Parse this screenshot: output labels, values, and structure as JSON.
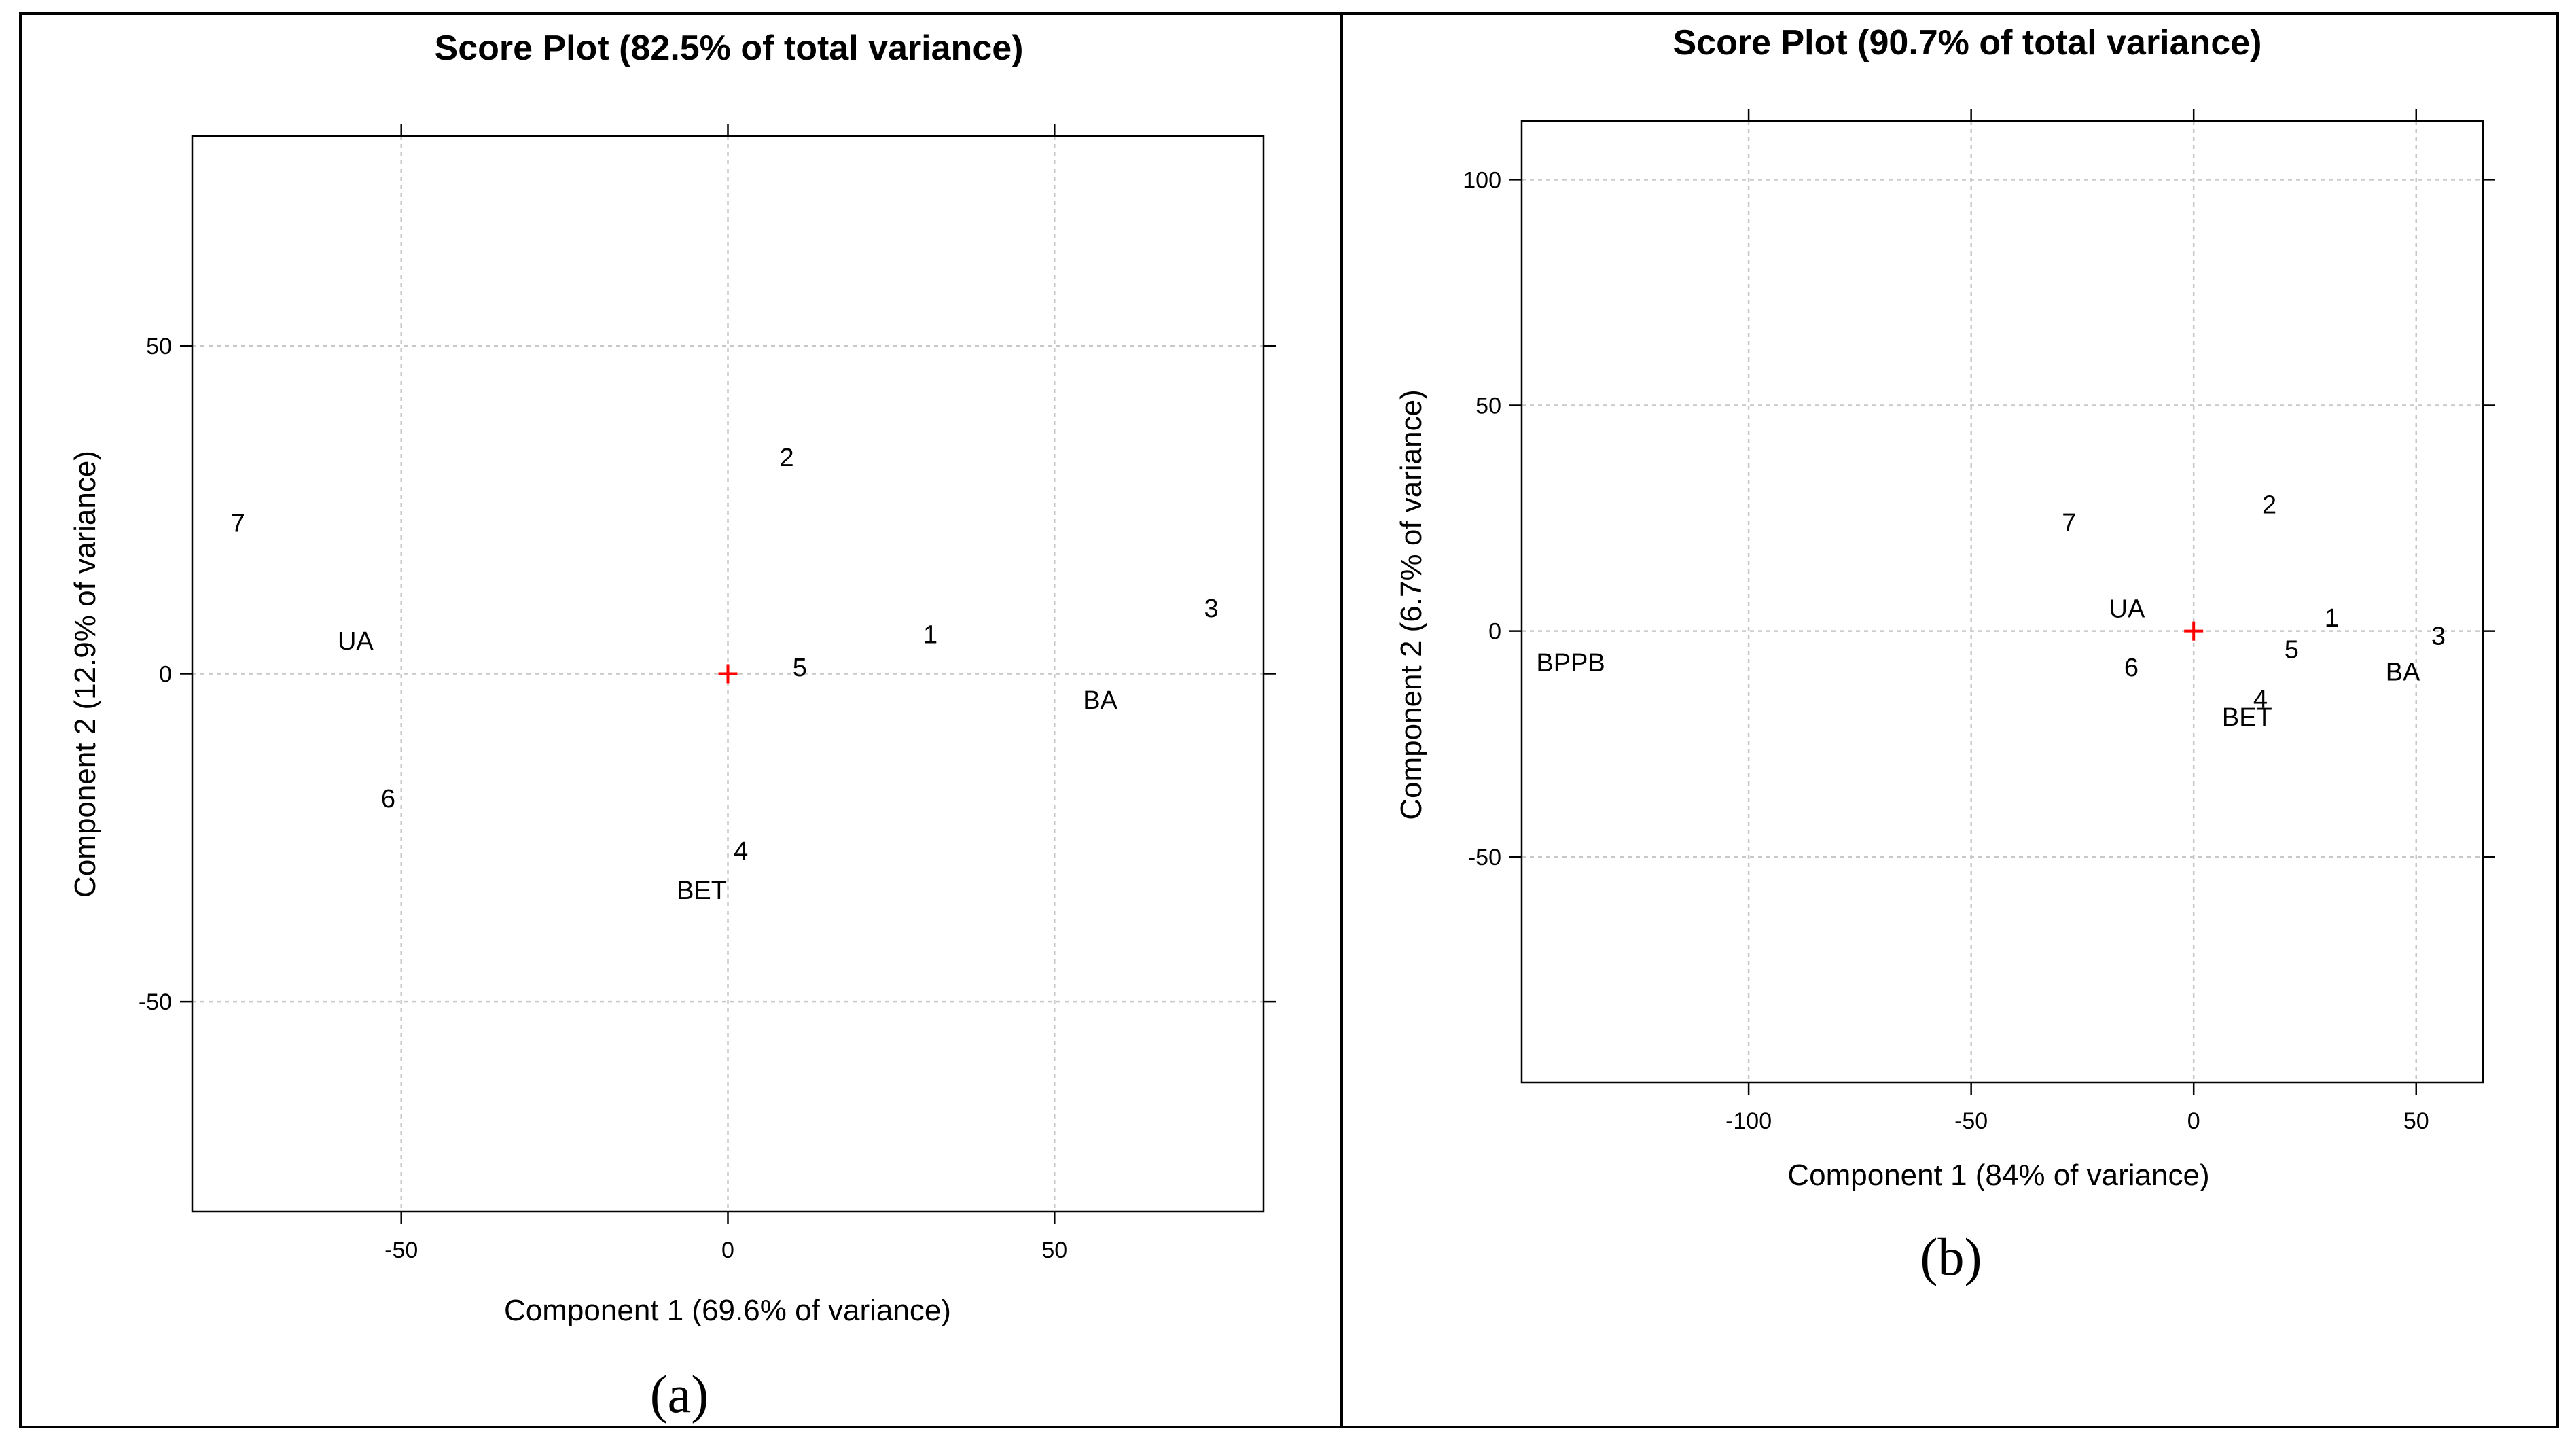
{
  "chart_data": [
    {
      "type": "scatter",
      "panel_tag": "(a)",
      "title": "Score Plot (82.5% of total variance)",
      "xlabel": "Component 1 (69.6% of variance)",
      "ylabel": "Component 2 (12.9% of variance)",
      "xlim": [
        -82,
        82
      ],
      "ylim": [
        -82,
        82
      ],
      "xticks": [
        -50,
        0,
        50
      ],
      "yticks": [
        -50,
        0,
        50
      ],
      "grid": true,
      "origin_marker_color": "#ff0000",
      "points": [
        {
          "label": "7",
          "x": -75,
          "y": 23
        },
        {
          "label": "UA",
          "x": -57,
          "y": 5
        },
        {
          "label": "6",
          "x": -52,
          "y": -19
        },
        {
          "label": "2",
          "x": 9,
          "y": 33
        },
        {
          "label": "1",
          "x": 31,
          "y": 6
        },
        {
          "label": "5",
          "x": 11,
          "y": 1
        },
        {
          "label": "4",
          "x": 2,
          "y": -27
        },
        {
          "label": "BET",
          "x": -4,
          "y": -33
        },
        {
          "label": "BA",
          "x": 57,
          "y": -4
        },
        {
          "label": "3",
          "x": 74,
          "y": 10
        }
      ]
    },
    {
      "type": "scatter",
      "panel_tag": "(b)",
      "title": "Score Plot (90.7% of total variance)",
      "xlabel": "Component 1 (84% of variance)",
      "ylabel": "Component 2 (6.7% of variance)",
      "xlim": [
        -151,
        65
      ],
      "ylim": [
        -100,
        113
      ],
      "xticks": [
        -100,
        -50,
        0,
        50
      ],
      "yticks": [
        -50,
        0,
        50,
        100
      ],
      "grid": true,
      "origin_marker_color": "#ff0000",
      "points": [
        {
          "label": "BPPB",
          "x": -140,
          "y": -7
        },
        {
          "label": "7",
          "x": -28,
          "y": 24
        },
        {
          "label": "2",
          "x": 17,
          "y": 28
        },
        {
          "label": "UA",
          "x": -15,
          "y": 5
        },
        {
          "label": "1",
          "x": 31,
          "y": 3
        },
        {
          "label": "3",
          "x": 55,
          "y": -1
        },
        {
          "label": "6",
          "x": -14,
          "y": -8
        },
        {
          "label": "5",
          "x": 22,
          "y": -4
        },
        {
          "label": "4",
          "x": 15,
          "y": -15
        },
        {
          "label": "BET",
          "x": 12,
          "y": -19
        },
        {
          "label": "BA",
          "x": 47,
          "y": -9
        }
      ]
    }
  ]
}
